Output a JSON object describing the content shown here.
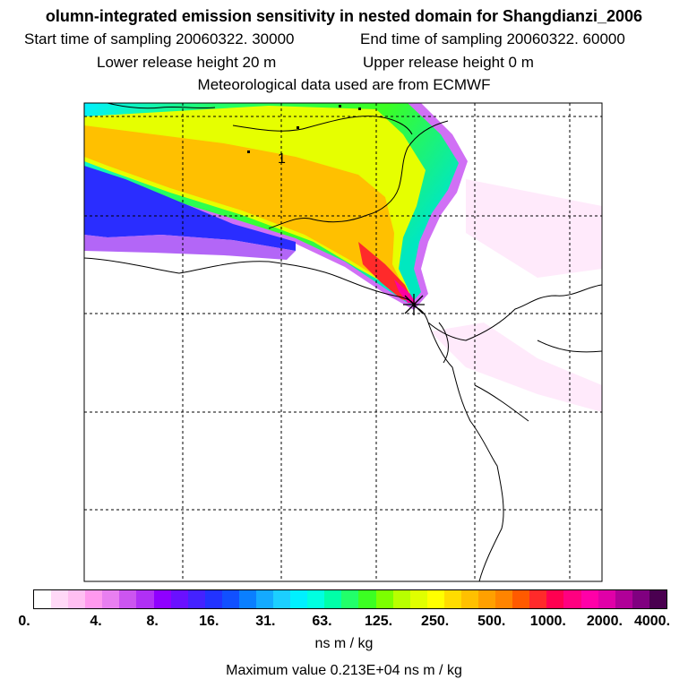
{
  "header": {
    "title": "olumn-integrated emission sensitivity in nested domain for Shangdianzi_2006",
    "start_label": "Start time of sampling 20060322. 30000",
    "end_label": "End time of sampling 20060322. 60000",
    "lower_label": "Lower release height   20 m",
    "upper_label": "Upper release height    0 m",
    "met_label": "Meteorological data used are from ECMWF"
  },
  "map": {
    "domain_id_label": "1",
    "colors": {
      "coast": "#000000",
      "grid": "#000000",
      "site_marker": "#000000"
    }
  },
  "colorbar": {
    "tick_labels": [
      "0.",
      "4.",
      "8.",
      "16.",
      "31.",
      "63.",
      "125.",
      "250.",
      "500.",
      "1000.",
      "2000.",
      "4000."
    ],
    "colors": [
      "#ffffff",
      "#ffd9f7",
      "#ffbff2",
      "#ff99ee",
      "#e87ff0",
      "#cc55f0",
      "#b030f5",
      "#8f00ff",
      "#6a10ff",
      "#4422ff",
      "#2233ff",
      "#1150ff",
      "#0a7fff",
      "#14aaff",
      "#1ccfff",
      "#00f0ff",
      "#00ffe0",
      "#00ffa8",
      "#22ff6a",
      "#3cff22",
      "#7cff00",
      "#b8ff00",
      "#e0ff00",
      "#ffff00",
      "#ffdc00",
      "#ffc000",
      "#ffa000",
      "#ff8400",
      "#ff5a00",
      "#ff2a2a",
      "#ff0050",
      "#ff0080",
      "#ff00a8",
      "#e000a8",
      "#b00098",
      "#800080",
      "#4a0050"
    ],
    "units": "ns m / kg",
    "max_value": "Maximum value  0.213E+04 ns m / kg"
  }
}
